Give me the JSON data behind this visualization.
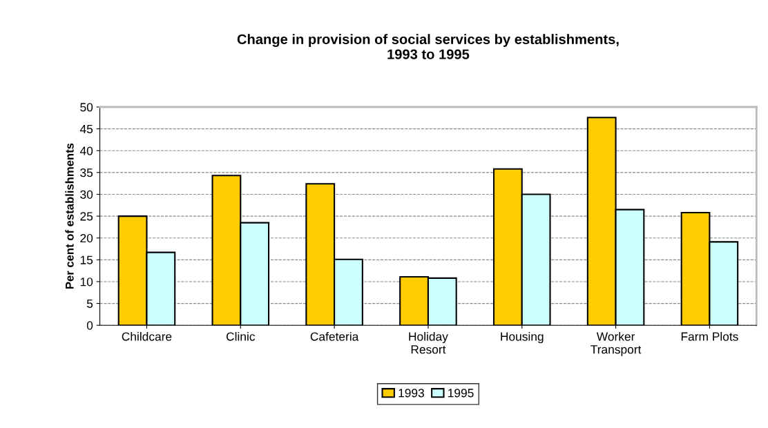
{
  "chart_data": {
    "type": "bar",
    "title": "Change in provision of social services by establishments,\n1993 to 1995",
    "ylabel": "Per cent of establishments",
    "categories": [
      "Childcare",
      "Clinic",
      "Cafeteria",
      "Holiday\nResort",
      "Housing",
      "Worker\nTransport",
      "Farm Plots"
    ],
    "series": [
      {
        "name": "1993",
        "color": "#ffcc00",
        "values": [
          25.0,
          34.3,
          32.4,
          11.1,
          35.8,
          47.6,
          25.8
        ]
      },
      {
        "name": "1995",
        "color": "#ccffff",
        "values": [
          16.7,
          23.5,
          15.1,
          10.8,
          30.0,
          26.5,
          19.1
        ]
      }
    ],
    "ylim": [
      0,
      50
    ],
    "yticks": [
      0,
      5,
      10,
      15,
      20,
      25,
      30,
      35,
      40,
      45,
      50
    ],
    "grid": "y",
    "legend": "bottom"
  }
}
